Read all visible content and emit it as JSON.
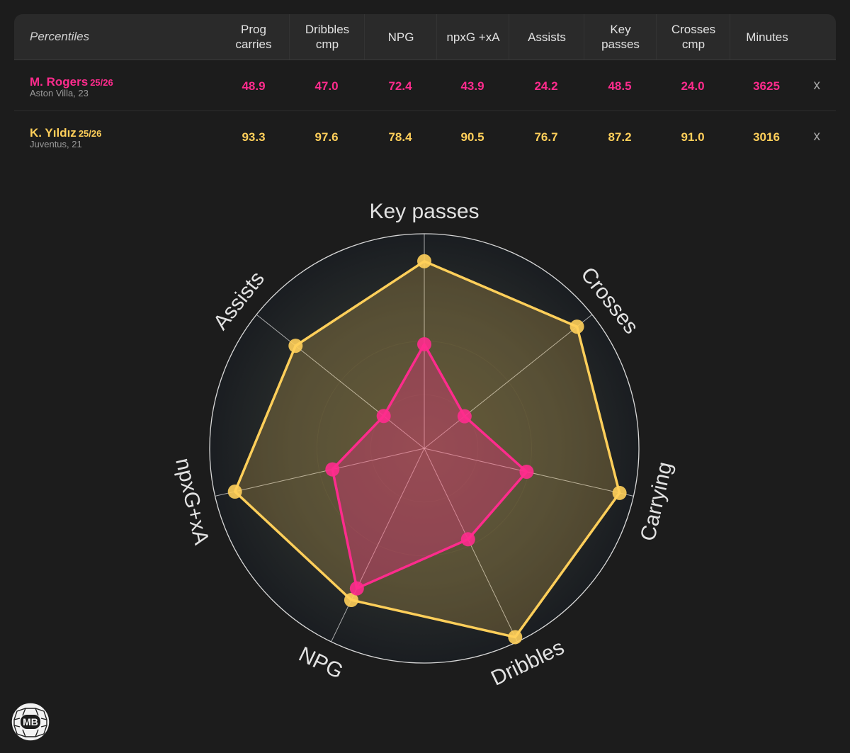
{
  "table": {
    "corner_label": "Percentiles",
    "columns": [
      "Prog\ncarries",
      "Dribbles\ncmp",
      "NPG",
      "npxG +xA",
      "Assists",
      "Key\npasses",
      "Crosses\ncmp",
      "Minutes"
    ],
    "players": [
      {
        "name": "M. Rogers",
        "season": "25/26",
        "sub": "Aston Villa, 23",
        "color": "#ff2b8d",
        "values": [
          "48.9",
          "47.0",
          "72.4",
          "43.9",
          "24.2",
          "48.5",
          "24.0",
          "3625"
        ],
        "remove_label": "x"
      },
      {
        "name": "K. Yıldız",
        "season": "25/26",
        "sub": "Juventus, 21",
        "color": "#ffcf5a",
        "values": [
          "93.3",
          "97.6",
          "78.4",
          "90.5",
          "76.7",
          "87.2",
          "91.0",
          "3016"
        ],
        "remove_label": "x"
      }
    ]
  },
  "chart_data": {
    "type": "radar",
    "axes": [
      "Key passes",
      "Crosses",
      "Carrying",
      "Dribbles",
      "NPG",
      "npxG+xA",
      "Assists"
    ],
    "range": [
      0,
      100
    ],
    "series": [
      {
        "name": "M. Rogers",
        "color": "#ff2b8d",
        "values": [
          48.5,
          24.0,
          48.9,
          47.0,
          72.4,
          43.9,
          24.2
        ]
      },
      {
        "name": "K. Yıldız",
        "color": "#ffcf5a",
        "values": [
          87.2,
          91.0,
          93.3,
          97.6,
          78.4,
          90.5,
          76.7
        ]
      }
    ],
    "grid": true
  },
  "logo": {
    "text": "MB"
  }
}
